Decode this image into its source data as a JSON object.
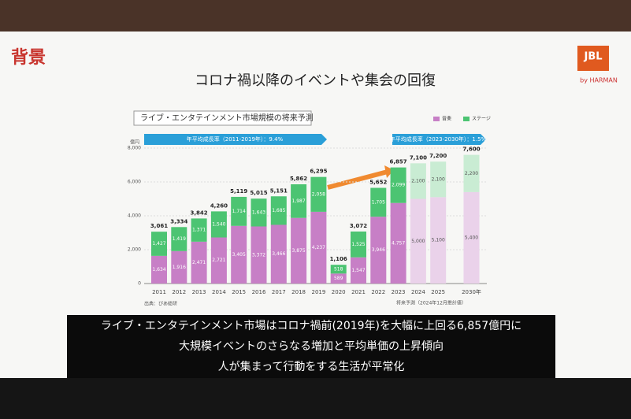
{
  "heading": "背景",
  "subtitle": "コロナ禍以降のイベントや集会の回復",
  "logo": {
    "brand": "JBL",
    "sub": "by HARMAN"
  },
  "caption": [
    "ライブ・エンタテインメント市場はコロナ禍前(2019年)を大幅に上回る6,857億円に",
    "大規模イベントのさらなる増加と平均単価の上昇傾向",
    "人が集まって行動をする生活が平常化"
  ],
  "chart_data": {
    "type": "stacked-bar",
    "title": "ライブ・エンタテインメント市場規模の将来予測",
    "y_unit": "億円",
    "growth_notes": [
      "年平均成長率（2011-2019年）：9.4%",
      "年平均成長率（2023-2030年）：1.5%"
    ],
    "source": "出典：ぴあ総研",
    "forecast_note": "将来予測（2024年12月推計値）",
    "categories": [
      "2011",
      "2012",
      "2013",
      "2014",
      "2015",
      "2016",
      "2017",
      "2018",
      "2019",
      "2020",
      "2021",
      "2022",
      "2023",
      "2024",
      "2025",
      "2030年"
    ],
    "forecast": [
      false,
      false,
      false,
      false,
      false,
      false,
      false,
      false,
      false,
      false,
      false,
      false,
      false,
      true,
      true,
      true
    ],
    "series": [
      {
        "name": "音楽",
        "color": "#c77fc6",
        "forecast_color": "#ead2ea",
        "values": [
          1634,
          1916,
          2471,
          2721,
          3405,
          3372,
          3466,
          3875,
          4237,
          589,
          1547,
          3946,
          4757,
          5000,
          5100,
          5400
        ],
        "value_labels": [
          "1,634",
          "1,916",
          "2,471",
          "2,721",
          "3,405",
          "3,372",
          "3,466",
          "3,875",
          "4,237",
          "589",
          "1,547",
          "3,946",
          "4,757",
          "5,000",
          "5,100",
          "5,400"
        ]
      },
      {
        "name": "ステージ",
        "color": "#4cc472",
        "forecast_color": "#c9ecd3",
        "values": [
          1427,
          1419,
          1371,
          1540,
          1714,
          1643,
          1685,
          1987,
          2058,
          518,
          1525,
          1705,
          2099,
          2100,
          2100,
          2200
        ],
        "value_labels": [
          "1,427",
          "1,419",
          "1,371",
          "1,540",
          "1,714",
          "1,643",
          "1,685",
          "1,987",
          "2,058",
          "518",
          "1,525",
          "1,705",
          "2,099",
          "2,100",
          "2,100",
          "2,200"
        ]
      }
    ],
    "totals": {
      "values": [
        3061,
        3334,
        3842,
        4260,
        5119,
        5015,
        5151,
        5862,
        6295,
        1106,
        3072,
        5652,
        6857,
        7100,
        7200,
        7600
      ],
      "value_labels": [
        "3,061",
        "3,334",
        "3,842",
        "4,260",
        "5,119",
        "5,015",
        "5,151",
        "5,862",
        "6,295",
        "1,106",
        "3,072",
        "5,652",
        "6,857",
        "7,100",
        "7,200",
        "7,600"
      ]
    },
    "ylim": [
      0,
      8000
    ],
    "yticks": [
      0,
      {
        "value": 2000,
        "label": "2,000"
      },
      {
        "value": 4000,
        "label": "4,000"
      },
      {
        "value": 6000,
        "label": "6,000"
      },
      {
        "value": 8000,
        "label": "8,000"
      }
    ],
    "grid": true
  }
}
